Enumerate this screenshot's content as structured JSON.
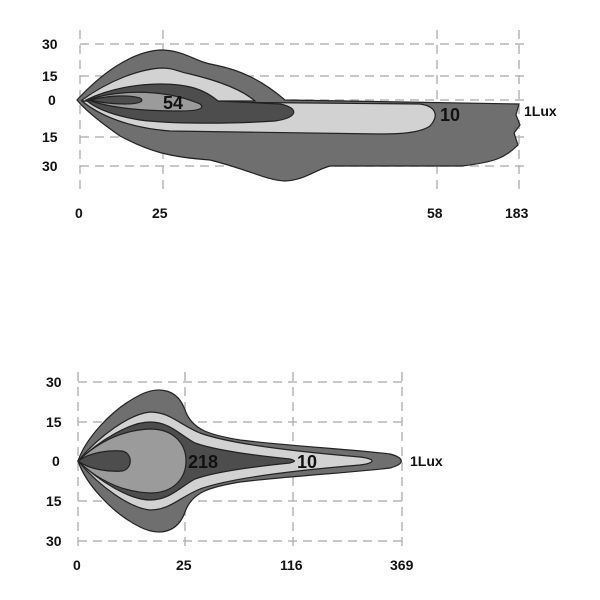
{
  "diagrams": [
    {
      "y_ticks": [
        "30",
        "15",
        "0",
        "15",
        "30"
      ],
      "x_ticks": [
        "0",
        "25",
        "58",
        "183"
      ],
      "contour_labels": [
        "54",
        "10",
        "1Lux"
      ]
    },
    {
      "y_ticks": [
        "30",
        "15",
        "0",
        "15",
        "30"
      ],
      "x_ticks": [
        "0",
        "25",
        "116",
        "369"
      ],
      "contour_labels": [
        "218",
        "10",
        "1Lux"
      ]
    }
  ],
  "colors": {
    "outer": "#6f6f6f",
    "light": "#d2d2d2",
    "dark": "#4d4d4d",
    "core": "#9b9b9b"
  }
}
